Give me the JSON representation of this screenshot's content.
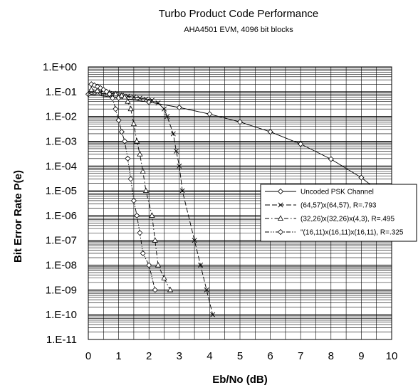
{
  "chart_data": {
    "type": "line",
    "title": "Turbo Product Code Performance",
    "subtitle": "AHA4501 EVM, 4096 bit blocks",
    "xlabel": "Eb/No (dB)",
    "ylabel": "Bit Error Rate P(e)",
    "xlim": [
      0,
      10
    ],
    "ylim": [
      1e-11,
      1
    ],
    "yscale": "log",
    "grid": true,
    "legend_position": "right",
    "x_ticks": [
      "0",
      "1",
      "2",
      "3",
      "4",
      "5",
      "6",
      "7",
      "8",
      "9",
      "10"
    ],
    "y_ticks": [
      "1.E+00",
      "1.E-01",
      "1.E-02",
      "1.E-03",
      "1.E-04",
      "1.E-05",
      "1.E-06",
      "1.E-07",
      "1.E-08",
      "1.E-09",
      "1.E-10",
      "1.E-11"
    ],
    "series": [
      {
        "name": "Uncoded PSK Channel",
        "marker": "diamond",
        "dash": "solid",
        "points": [
          [
            0,
            0.079
          ],
          [
            1,
            0.056
          ],
          [
            2,
            0.038
          ],
          [
            3,
            0.023
          ],
          [
            4,
            0.0125
          ],
          [
            5,
            0.006
          ],
          [
            6,
            0.0024
          ],
          [
            7,
            0.00077
          ],
          [
            8,
            0.00019
          ],
          [
            9,
            3.4e-05
          ],
          [
            10,
            3.9e-06
          ]
        ]
      },
      {
        "name": "(64,57)x(64,57), R=.793",
        "marker": "x",
        "dash": "long",
        "points": [
          [
            0.1,
            0.1
          ],
          [
            0.3,
            0.095
          ],
          [
            0.5,
            0.09
          ],
          [
            0.7,
            0.085
          ],
          [
            0.9,
            0.078
          ],
          [
            1.1,
            0.072
          ],
          [
            1.3,
            0.066
          ],
          [
            1.5,
            0.06
          ],
          [
            1.7,
            0.055
          ],
          [
            1.9,
            0.05
          ],
          [
            2.1,
            0.045
          ],
          [
            2.3,
            0.035
          ],
          [
            2.5,
            0.02
          ],
          [
            2.6,
            0.01
          ],
          [
            2.8,
            0.002
          ],
          [
            2.9,
            0.0004
          ],
          [
            3.0,
            0.0001
          ],
          [
            3.1,
            1e-05
          ],
          [
            3.5,
            1e-07
          ],
          [
            3.7,
            1e-08
          ],
          [
            3.9,
            1e-09
          ],
          [
            4.1,
            1e-10
          ]
        ]
      },
      {
        "name": "(32,26)x(32,26)x(4,3), R=.495",
        "marker": "triangle",
        "dash": "dashdot",
        "points": [
          [
            0.1,
            0.12
          ],
          [
            0.3,
            0.11
          ],
          [
            0.5,
            0.1
          ],
          [
            0.7,
            0.09
          ],
          [
            0.9,
            0.08
          ],
          [
            1.1,
            0.07
          ],
          [
            1.2,
            0.06
          ],
          [
            1.3,
            0.04
          ],
          [
            1.4,
            0.02
          ],
          [
            1.5,
            0.005
          ],
          [
            1.6,
            0.001
          ],
          [
            1.7,
            0.0003
          ],
          [
            1.8,
            6e-05
          ],
          [
            1.9,
            1e-05
          ],
          [
            2.1,
            1e-06
          ],
          [
            2.2,
            1e-07
          ],
          [
            2.3,
            1e-08
          ],
          [
            2.5,
            3e-09
          ],
          [
            2.7,
            1e-09
          ]
        ]
      },
      {
        "name": "\"(16,11)x(16,11)x(16,11), R=.325",
        "marker": "diamond",
        "dash": "dashdotdot",
        "points": [
          [
            0.1,
            0.2
          ],
          [
            0.2,
            0.18
          ],
          [
            0.3,
            0.16
          ],
          [
            0.4,
            0.14
          ],
          [
            0.5,
            0.12
          ],
          [
            0.6,
            0.1
          ],
          [
            0.7,
            0.08
          ],
          [
            0.8,
            0.055
          ],
          [
            0.9,
            0.02
          ],
          [
            1.0,
            0.007
          ],
          [
            1.1,
            0.0024
          ],
          [
            1.2,
            0.001
          ],
          [
            1.3,
            0.0002
          ],
          [
            1.4,
            3e-05
          ],
          [
            1.5,
            4e-06
          ],
          [
            1.6,
            1e-06
          ],
          [
            1.7,
            2e-07
          ],
          [
            1.8,
            3e-08
          ],
          [
            2.0,
            1e-08
          ],
          [
            2.2,
            1e-09
          ]
        ]
      }
    ]
  }
}
